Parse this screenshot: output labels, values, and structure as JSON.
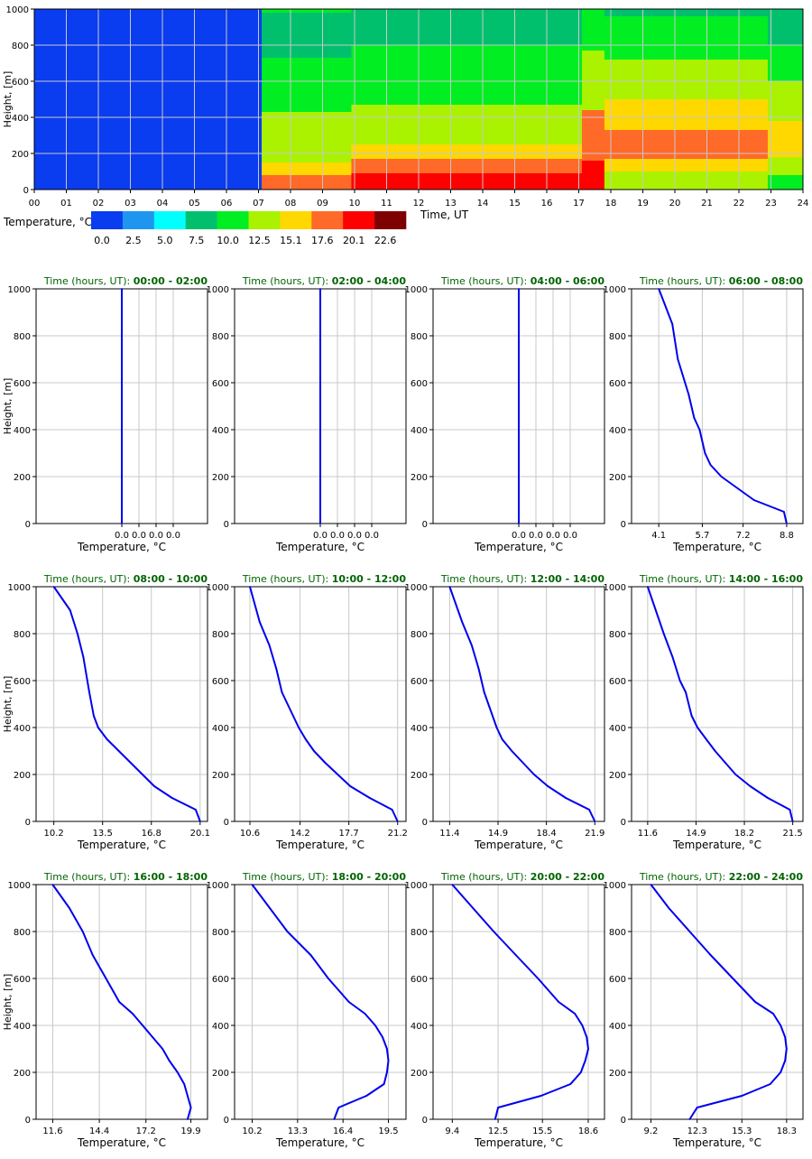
{
  "chart_data": [
    {
      "type": "heatmap",
      "xlabel": "Time, UT",
      "ylabel": "Height, [m]",
      "xlim": [
        0,
        24
      ],
      "ylim": [
        0,
        1000
      ],
      "x_ticks": [
        "00",
        "01",
        "02",
        "03",
        "04",
        "05",
        "06",
        "07",
        "08",
        "09",
        "10",
        "11",
        "12",
        "13",
        "14",
        "15",
        "16",
        "17",
        "18",
        "19",
        "20",
        "21",
        "22",
        "23",
        "24"
      ],
      "y_ticks": [
        0,
        200,
        400,
        600,
        800,
        1000
      ],
      "grid": true,
      "legend": {
        "title": "Temperature, °C",
        "labels": [
          "0.0",
          "2.5",
          "5.0",
          "7.5",
          "10.0",
          "12.5",
          "15.1",
          "17.6",
          "20.1",
          "22.6"
        ],
        "colors": [
          "#0a3cf0",
          "#1e96f0",
          "#00ffff",
          "#00c06e",
          "#00ee22",
          "#aaf200",
          "#ffd800",
          "#ff6a28",
          "#ff0000",
          "#7f0000"
        ]
      },
      "bands": [
        {
          "time": [
            0,
            7.1
          ],
          "top_heights": [
            1000
          ],
          "classes": [
            0
          ]
        },
        {
          "time": [
            7.1,
            9.9
          ],
          "top_heights": [
            80,
            150,
            430,
            730,
            980,
            1000
          ],
          "classes": [
            7,
            6,
            5,
            4,
            3,
            4
          ]
        },
        {
          "time": [
            9.9,
            17.1
          ],
          "top_heights": [
            90,
            170,
            250,
            470,
            800,
            1000
          ],
          "classes": [
            8,
            7,
            6,
            5,
            4,
            3
          ]
        },
        {
          "time": [
            17.1,
            17.8
          ],
          "top_heights": [
            160,
            440,
            770,
            1000
          ],
          "classes": [
            8,
            7,
            5,
            4
          ]
        },
        {
          "time": [
            17.8,
            22.9
          ],
          "top_heights": [
            100,
            170,
            330,
            500,
            720,
            960,
            1000
          ],
          "classes": [
            5,
            6,
            7,
            6,
            5,
            4,
            3
          ]
        },
        {
          "time": [
            22.9,
            24
          ],
          "top_heights": [
            80,
            180,
            380,
            600,
            800,
            960,
            1000
          ],
          "classes": [
            4,
            5,
            6,
            5,
            4,
            3,
            3
          ]
        }
      ]
    },
    {
      "type": "line",
      "title_prefix": "Time (hours, UT): ",
      "title_range": "00:00 - 02:00",
      "xlabel": "Temperature, °C",
      "ylabel": "Height, [m]",
      "xlim": [
        -0.05,
        0.05
      ],
      "ylim": [
        0,
        1000
      ],
      "x_ticks": [
        0,
        0.01,
        0.02,
        0.03
      ],
      "x_tick_labels": [
        "0.0",
        "0.0",
        "0.0",
        "0.0"
      ],
      "y_ticks": [
        0,
        200,
        400,
        600,
        800,
        1000
      ],
      "series": [
        {
          "x": [
            0,
            0,
            0,
            0,
            0,
            0,
            0,
            0,
            0,
            0,
            0,
            0,
            0,
            0,
            0,
            0,
            0,
            0,
            0,
            0,
            0
          ],
          "y": [
            0,
            50,
            100,
            150,
            200,
            250,
            300,
            350,
            400,
            450,
            500,
            550,
            600,
            650,
            700,
            750,
            800,
            850,
            900,
            950,
            1000
          ]
        }
      ]
    },
    {
      "type": "line",
      "title_prefix": "Time (hours, UT): ",
      "title_range": "02:00 - 04:00",
      "xlabel": "Temperature, °C",
      "ylabel": "",
      "xlim": [
        -0.05,
        0.05
      ],
      "ylim": [
        0,
        1000
      ],
      "x_ticks": [
        0,
        0.01,
        0.02,
        0.03
      ],
      "x_tick_labels": [
        "0.0",
        "0.0",
        "0.0",
        "0.0"
      ],
      "y_ticks": [
        0,
        200,
        400,
        600,
        800,
        1000
      ],
      "series": [
        {
          "x": [
            0,
            0,
            0,
            0,
            0,
            0,
            0,
            0,
            0,
            0,
            0,
            0,
            0,
            0,
            0,
            0,
            0,
            0,
            0,
            0,
            0
          ],
          "y": [
            0,
            50,
            100,
            150,
            200,
            250,
            300,
            350,
            400,
            450,
            500,
            550,
            600,
            650,
            700,
            750,
            800,
            850,
            900,
            950,
            1000
          ]
        }
      ]
    },
    {
      "type": "line",
      "title_prefix": "Time (hours, UT): ",
      "title_range": "04:00 - 06:00",
      "xlabel": "Temperature, °C",
      "ylabel": "",
      "xlim": [
        -0.05,
        0.05
      ],
      "ylim": [
        0,
        1000
      ],
      "x_ticks": [
        0,
        0.01,
        0.02,
        0.03
      ],
      "x_tick_labels": [
        "0.0",
        "0.0",
        "0.0",
        "0.0"
      ],
      "y_ticks": [
        0,
        200,
        400,
        600,
        800,
        1000
      ],
      "series": [
        {
          "x": [
            0,
            0,
            0,
            0,
            0,
            0,
            0,
            0,
            0,
            0,
            0,
            0,
            0,
            0,
            0,
            0,
            0,
            0,
            0,
            0,
            0
          ],
          "y": [
            0,
            50,
            100,
            150,
            200,
            250,
            300,
            350,
            400,
            450,
            500,
            550,
            600,
            650,
            700,
            750,
            800,
            850,
            900,
            950,
            1000
          ]
        }
      ]
    },
    {
      "type": "line",
      "title_prefix": "Time (hours, UT): ",
      "title_range": "06:00 - 08:00",
      "xlabel": "Temperature, °C",
      "ylabel": "",
      "xlim": [
        3.1,
        9.4
      ],
      "ylim": [
        0,
        1000
      ],
      "x_ticks": [
        4.1,
        5.7,
        7.2,
        8.8
      ],
      "x_tick_labels": [
        "4.1",
        "5.7",
        "7.2",
        "8.8"
      ],
      "y_ticks": [
        0,
        200,
        400,
        600,
        800,
        1000
      ],
      "series": [
        {
          "x": [
            8.8,
            8.7,
            7.6,
            7.0,
            6.4,
            6.0,
            5.8,
            5.7,
            5.6,
            5.4,
            5.2,
            4.8,
            4.6,
            4.1
          ],
          "y": [
            0,
            50,
            100,
            150,
            200,
            250,
            300,
            350,
            400,
            450,
            550,
            700,
            850,
            1000
          ]
        }
      ]
    },
    {
      "type": "line",
      "title_prefix": "Time (hours, UT): ",
      "title_range": "08:00 - 10:00",
      "xlabel": "Temperature, °C",
      "ylabel": "Height, [m]",
      "xlim": [
        9.0,
        20.6
      ],
      "ylim": [
        0,
        1000
      ],
      "x_ticks": [
        10.2,
        13.5,
        16.8,
        20.1
      ],
      "x_tick_labels": [
        "10.2",
        "13.5",
        "16.8",
        "20.1"
      ],
      "y_ticks": [
        0,
        200,
        400,
        600,
        800,
        1000
      ],
      "series": [
        {
          "x": [
            20.1,
            19.8,
            18.2,
            17.0,
            16.2,
            15.4,
            14.6,
            13.8,
            13.2,
            12.9,
            12.6,
            12.2,
            11.8,
            11.3,
            10.2
          ],
          "y": [
            0,
            50,
            100,
            150,
            200,
            250,
            300,
            350,
            400,
            450,
            550,
            700,
            800,
            900,
            1000
          ]
        }
      ]
    },
    {
      "type": "line",
      "title_prefix": "Time (hours, UT): ",
      "title_range": "10:00 - 12:00",
      "xlabel": "Temperature, °C",
      "ylabel": "",
      "xlim": [
        9.5,
        21.8
      ],
      "ylim": [
        0,
        1000
      ],
      "x_ticks": [
        10.6,
        14.2,
        17.7,
        21.2
      ],
      "x_tick_labels": [
        "10.6",
        "14.2",
        "17.7",
        "21.2"
      ],
      "y_ticks": [
        0,
        200,
        400,
        600,
        800,
        1000
      ],
      "series": [
        {
          "x": [
            21.2,
            20.8,
            19.2,
            17.8,
            16.9,
            16.0,
            15.2,
            14.6,
            14.1,
            13.7,
            13.3,
            12.9,
            12.5,
            12.0,
            11.3,
            10.6
          ],
          "y": [
            0,
            50,
            100,
            150,
            200,
            250,
            300,
            350,
            400,
            450,
            500,
            550,
            650,
            750,
            850,
            1000
          ]
        }
      ]
    },
    {
      "type": "line",
      "title_prefix": "Time (hours, UT): ",
      "title_range": "12:00 - 14:00",
      "xlabel": "Temperature, °C",
      "ylabel": "",
      "xlim": [
        10.2,
        22.6
      ],
      "ylim": [
        0,
        1000
      ],
      "x_ticks": [
        11.4,
        14.9,
        18.4,
        21.9
      ],
      "x_tick_labels": [
        "11.4",
        "14.9",
        "18.4",
        "21.9"
      ],
      "y_ticks": [
        0,
        200,
        400,
        600,
        800,
        1000
      ],
      "series": [
        {
          "x": [
            21.9,
            21.5,
            19.8,
            18.5,
            17.5,
            16.7,
            15.9,
            15.2,
            14.8,
            14.5,
            14.2,
            13.9,
            13.5,
            13.0,
            12.3,
            11.4
          ],
          "y": [
            0,
            50,
            100,
            150,
            200,
            250,
            300,
            350,
            400,
            450,
            500,
            550,
            650,
            750,
            850,
            1000
          ]
        }
      ]
    },
    {
      "type": "line",
      "title_prefix": "Time (hours, UT): ",
      "title_range": "14:00 - 16:00",
      "xlabel": "Temperature, °C",
      "ylabel": "",
      "xlim": [
        10.5,
        22.2
      ],
      "ylim": [
        0,
        1000
      ],
      "x_ticks": [
        11.6,
        14.9,
        18.2,
        21.5
      ],
      "x_tick_labels": [
        "11.6",
        "14.9",
        "18.2",
        "21.5"
      ],
      "y_ticks": [
        0,
        200,
        400,
        600,
        800,
        1000
      ],
      "series": [
        {
          "x": [
            21.5,
            21.3,
            19.8,
            18.6,
            17.6,
            16.9,
            16.2,
            15.6,
            15.0,
            14.6,
            14.4,
            14.2,
            13.8,
            13.3,
            12.7,
            11.6
          ],
          "y": [
            0,
            50,
            100,
            150,
            200,
            250,
            300,
            350,
            400,
            450,
            500,
            550,
            600,
            700,
            800,
            1000
          ]
        }
      ]
    },
    {
      "type": "line",
      "title_prefix": "Time (hours, UT): ",
      "title_range": "16:00 - 18:00",
      "xlabel": "Temperature, °C",
      "ylabel": "Height, [m]",
      "xlim": [
        10.6,
        20.9
      ],
      "ylim": [
        0,
        1000
      ],
      "x_ticks": [
        11.6,
        14.4,
        17.2,
        19.9
      ],
      "x_tick_labels": [
        "11.6",
        "14.4",
        "17.2",
        "19.9"
      ],
      "y_ticks": [
        0,
        200,
        400,
        600,
        800,
        1000
      ],
      "series": [
        {
          "x": [
            19.7,
            19.9,
            19.7,
            19.5,
            19.1,
            18.6,
            18.2,
            17.6,
            17.0,
            16.4,
            15.6,
            14.8,
            14.0,
            13.4,
            12.6,
            11.6
          ],
          "y": [
            0,
            50,
            100,
            150,
            200,
            250,
            300,
            350,
            400,
            450,
            500,
            600,
            700,
            800,
            900,
            1000
          ]
        }
      ]
    },
    {
      "type": "line",
      "title_prefix": "Time (hours, UT): ",
      "title_range": "18:00 - 20:00",
      "xlabel": "Temperature, °C",
      "ylabel": "",
      "xlim": [
        9.0,
        20.7
      ],
      "ylim": [
        0,
        1000
      ],
      "x_ticks": [
        10.2,
        13.3,
        16.4,
        19.5
      ],
      "x_tick_labels": [
        "10.2",
        "13.3",
        "16.4",
        "19.5"
      ],
      "y_ticks": [
        0,
        200,
        400,
        600,
        800,
        1000
      ],
      "series": [
        {
          "x": [
            15.8,
            16.1,
            18.0,
            19.2,
            19.4,
            19.5,
            19.4,
            19.1,
            18.6,
            17.9,
            16.8,
            15.4,
            14.2,
            12.6,
            11.4,
            10.2
          ],
          "y": [
            0,
            50,
            100,
            150,
            200,
            250,
            300,
            350,
            400,
            450,
            500,
            600,
            700,
            800,
            900,
            1000
          ]
        }
      ]
    },
    {
      "type": "line",
      "title_prefix": "Time (hours, UT): ",
      "title_range": "20:00 - 22:00",
      "xlabel": "Temperature, °C",
      "ylabel": "",
      "xlim": [
        8.1,
        19.7
      ],
      "ylim": [
        0,
        1000
      ],
      "x_ticks": [
        9.4,
        12.5,
        15.5,
        18.6
      ],
      "x_tick_labels": [
        "9.4",
        "12.5",
        "15.5",
        "18.6"
      ],
      "y_ticks": [
        0,
        200,
        400,
        600,
        800,
        1000
      ],
      "series": [
        {
          "x": [
            12.3,
            12.5,
            15.4,
            17.4,
            18.1,
            18.4,
            18.6,
            18.5,
            18.2,
            17.7,
            16.6,
            15.2,
            13.7,
            12.2,
            10.8,
            9.4
          ],
          "y": [
            0,
            50,
            100,
            150,
            200,
            250,
            300,
            350,
            400,
            450,
            500,
            600,
            700,
            800,
            900,
            1000
          ]
        }
      ]
    },
    {
      "type": "line",
      "title_prefix": "Time (hours, UT): ",
      "title_range": "22:00 - 24:00",
      "xlabel": "Temperature, °C",
      "ylabel": "",
      "xlim": [
        7.9,
        19.4
      ],
      "ylim": [
        0,
        1000
      ],
      "x_ticks": [
        9.2,
        12.3,
        15.3,
        18.3
      ],
      "x_tick_labels": [
        "9.2",
        "12.3",
        "15.3",
        "18.3"
      ],
      "y_ticks": [
        0,
        200,
        400,
        600,
        800,
        1000
      ],
      "series": [
        {
          "x": [
            11.8,
            12.3,
            15.3,
            17.2,
            17.9,
            18.2,
            18.3,
            18.2,
            17.9,
            17.4,
            16.2,
            14.7,
            13.2,
            11.8,
            10.4,
            9.2
          ],
          "y": [
            0,
            50,
            100,
            150,
            200,
            250,
            300,
            350,
            400,
            450,
            500,
            600,
            700,
            800,
            900,
            1000
          ]
        }
      ]
    }
  ]
}
